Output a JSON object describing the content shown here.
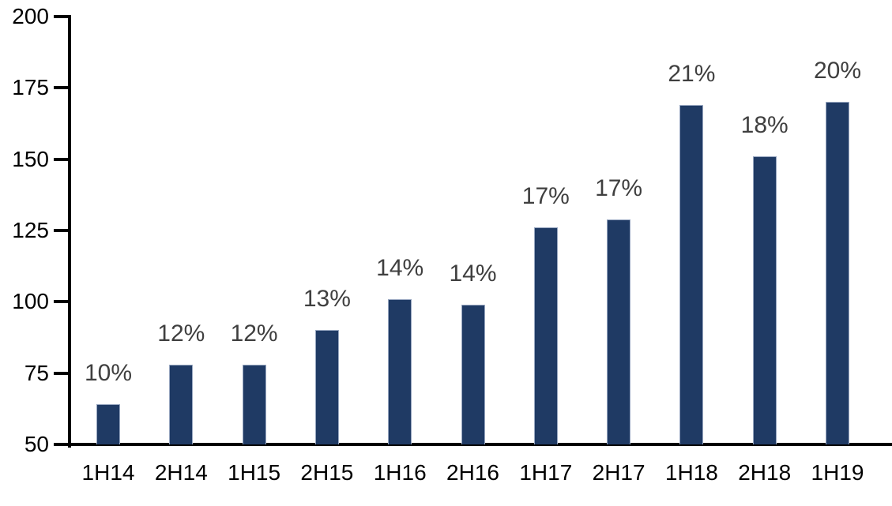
{
  "chart_data": {
    "type": "bar",
    "title": "",
    "xlabel": "",
    "ylabel": "",
    "categories": [
      "1H14",
      "2H14",
      "1H15",
      "2H15",
      "1H16",
      "2H16",
      "1H17",
      "2H17",
      "1H18",
      "2H18",
      "1H19"
    ],
    "values": [
      64,
      78,
      78,
      90,
      101,
      99,
      126,
      129,
      169,
      151,
      170
    ],
    "data_labels": [
      "10%",
      "12%",
      "12%",
      "13%",
      "14%",
      "14%",
      "17%",
      "17%",
      "21%",
      "18%",
      "20%"
    ],
    "y_ticks": [
      200,
      175,
      150,
      125,
      100,
      75,
      50
    ],
    "ylim": [
      50,
      200
    ],
    "grid": false,
    "legend": false,
    "colors": {
      "bar_fill": "#1f3a64",
      "bar_border": "#97a6c0",
      "data_label": "#3f3f3f",
      "axis": "#000000",
      "tick_label": "#000000",
      "background": "#ffffff"
    }
  }
}
